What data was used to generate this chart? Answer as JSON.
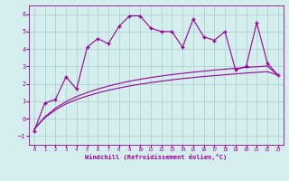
{
  "xlabel": "Windchill (Refroidissement éolien,°C)",
  "ylabel": "",
  "x_data": [
    0,
    1,
    2,
    3,
    4,
    5,
    6,
    7,
    8,
    9,
    10,
    11,
    12,
    13,
    14,
    15,
    16,
    17,
    18,
    19,
    20,
    21,
    22,
    23
  ],
  "y_scatter": [
    -0.7,
    0.9,
    1.1,
    2.4,
    1.7,
    4.1,
    4.6,
    4.3,
    5.3,
    5.9,
    5.9,
    5.2,
    5.0,
    5.0,
    4.1,
    5.7,
    4.7,
    4.5,
    5.0,
    2.8,
    3.0,
    5.5,
    3.2,
    2.5
  ],
  "trend1": [
    -0.6,
    0.05,
    0.5,
    0.85,
    1.1,
    1.3,
    1.48,
    1.63,
    1.76,
    1.88,
    1.98,
    2.07,
    2.15,
    2.23,
    2.3,
    2.36,
    2.42,
    2.47,
    2.52,
    2.57,
    2.62,
    2.66,
    2.7,
    2.5
  ],
  "trend2": [
    -0.6,
    0.1,
    0.6,
    0.98,
    1.27,
    1.5,
    1.7,
    1.87,
    2.02,
    2.15,
    2.26,
    2.36,
    2.45,
    2.53,
    2.6,
    2.67,
    2.73,
    2.79,
    2.84,
    2.89,
    2.94,
    2.98,
    3.02,
    2.5
  ],
  "line_color": "#990099",
  "bg_color": "#d4eeee",
  "grid_color": "#aacccc",
  "xlim": [
    -0.5,
    23.5
  ],
  "ylim": [
    -1.5,
    6.5
  ],
  "yticks": [
    -1,
    0,
    1,
    2,
    3,
    4,
    5,
    6
  ],
  "xticks": [
    0,
    1,
    2,
    3,
    4,
    5,
    6,
    7,
    8,
    9,
    10,
    11,
    12,
    13,
    14,
    15,
    16,
    17,
    18,
    19,
    20,
    21,
    22,
    23
  ]
}
